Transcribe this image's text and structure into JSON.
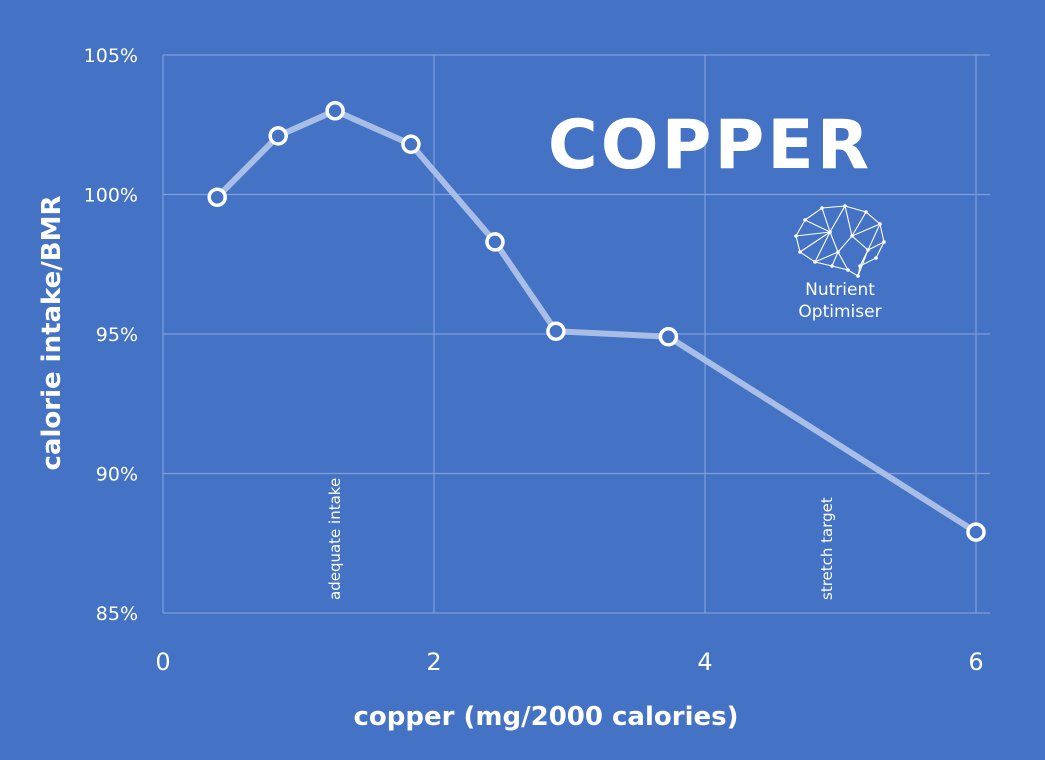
{
  "chart_data": {
    "type": "line",
    "title": "COPPER",
    "xlabel": "copper (mg/2000 calories)",
    "ylabel": "calorie intake/BMR",
    "xlim": [
      0,
      6.1
    ],
    "ylim": [
      85,
      105
    ],
    "x_ticks": [
      0,
      2,
      4,
      6
    ],
    "x_tick_labels": [
      "0",
      "2",
      "4",
      "6"
    ],
    "y_ticks": [
      85,
      90,
      95,
      100,
      105
    ],
    "y_tick_labels": [
      "85%",
      "90%",
      "95%",
      "100%",
      "105%"
    ],
    "grid": true,
    "series": [
      {
        "x": [
          0.4,
          0.85,
          1.27,
          1.83,
          2.45,
          2.9,
          3.73,
          6.0
        ],
        "y": [
          99.9,
          102.1,
          103.0,
          101.8,
          98.3,
          95.1,
          94.9,
          87.9
        ]
      }
    ],
    "annotations": [
      {
        "text": "adequate intake",
        "x": 1.27
      },
      {
        "text": "stretch target",
        "x": 4.9
      }
    ],
    "colors": {
      "background": "#4472C4",
      "line": "#A9BEE6",
      "marker_stroke": "#FFFFFF",
      "marker_fill": "#4472C4",
      "grid": "#7F9FD8"
    }
  },
  "logo": {
    "icon": "brain-network-icon",
    "line1": "Nutrient",
    "line2": "Optimiser"
  }
}
